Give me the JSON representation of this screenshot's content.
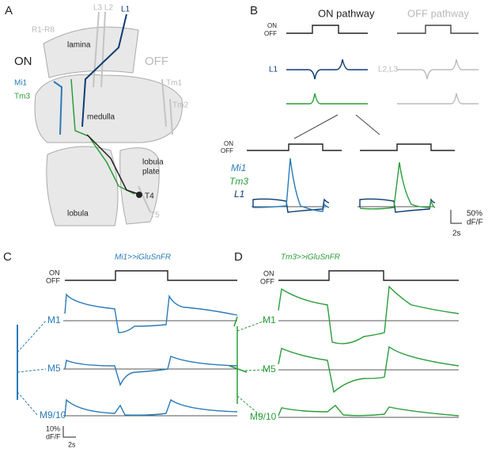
{
  "panels": {
    "A": {
      "letter": "A",
      "l3l2": "L3 L2",
      "l1": "L1",
      "r1r8": "R1-R8",
      "lamina": "lamina",
      "on": "ON",
      "off": "OFF",
      "mi1": "Mi1",
      "tm3": "Tm3",
      "tm1": "Tm1",
      "tm2": "Tm2",
      "medulla": "medulla",
      "lobula_plate": [
        "lobula",
        "plate"
      ],
      "t4": "T4",
      "lobula": "lobula",
      "t5": "T5"
    },
    "B": {
      "letter": "B",
      "on_title": "ON pathway",
      "off_title": "OFF pathway",
      "stim_top": [
        "ON",
        "OFF"
      ],
      "l1": "L1",
      "l2l3": "L2,L3",
      "stim_bottom": [
        "ON",
        "OFF"
      ],
      "legend": [
        "Mi1",
        "Tm3",
        "L1"
      ],
      "scale_y": [
        "50%",
        "dF/F"
      ],
      "scale_x": "2s"
    },
    "C": {
      "letter": "C",
      "title": "Mi1>>iGluSnFR",
      "stim": [
        "ON",
        "OFF"
      ],
      "layers": [
        "M1",
        "M5",
        "M9/10"
      ],
      "scale_y": [
        "10%",
        "dF/F"
      ],
      "scale_x": "2s"
    },
    "D": {
      "letter": "D",
      "title": "Tm3>>iGluSnFR",
      "stim": [
        "ON",
        "OFF"
      ],
      "layers": [
        "M1",
        "M5",
        "M9/10"
      ]
    }
  }
}
